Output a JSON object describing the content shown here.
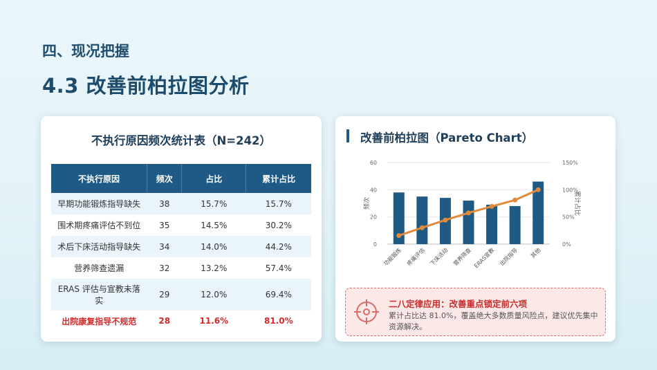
{
  "header": {
    "section": "四、现况把握",
    "title": "4.3  改善前柏拉图分析"
  },
  "table": {
    "title": "不执行原因频次统计表（N=242）",
    "headers": [
      "不执行原因",
      "频次",
      "占比",
      "累计占比"
    ],
    "rows": [
      [
        "早期功能锻炼指导缺失",
        "38",
        "15.7%",
        "15.7%"
      ],
      [
        "围术期疼痛评估不到位",
        "35",
        "14.5%",
        "30.2%"
      ],
      [
        "术后下床活动指导缺失",
        "34",
        "14.0%",
        "44.2%"
      ],
      [
        "营养筛查遗漏",
        "32",
        "13.2%",
        "57.4%"
      ],
      [
        "ERAS 评估与宣教未落实",
        "29",
        "12.0%",
        "69.4%"
      ],
      [
        "出院康复指导不规范",
        "28",
        "11.6%",
        "81.0%"
      ]
    ]
  },
  "chart_panel": {
    "title": "改善前柏拉图（Pareto Chart）"
  },
  "chart_data": {
    "type": "bar",
    "categories": [
      "功能锻炼",
      "疼痛评估",
      "下床活动",
      "营养筛查",
      "ERAS宣教",
      "出院指导",
      "其他"
    ],
    "series": [
      {
        "values": [
          38,
          35,
          34,
          32,
          29,
          28,
          46
        ]
      },
      {
        "type": "line",
        "values": [
          15.7,
          30.2,
          44.2,
          57.4,
          69.4,
          81.0,
          100
        ]
      }
    ],
    "ylabel": "频次",
    "y2label": "累计占比",
    "ylim": [
      0,
      60
    ],
    "y2lim": [
      0,
      150
    ],
    "yticks": [
      "0",
      "20",
      "40",
      "60"
    ],
    "y2ticks": [
      "0%",
      "50%",
      "100%",
      "150%"
    ],
    "grid": true,
    "colors": {
      "bar": "#1f5a84",
      "line": "#e08a3c"
    }
  },
  "note": {
    "title": "二八定律应用：改善重点锁定前六项",
    "text": "累计占比达 81.0%，覆盖绝大多数质量风险点，建议优先集中资源解决。"
  }
}
